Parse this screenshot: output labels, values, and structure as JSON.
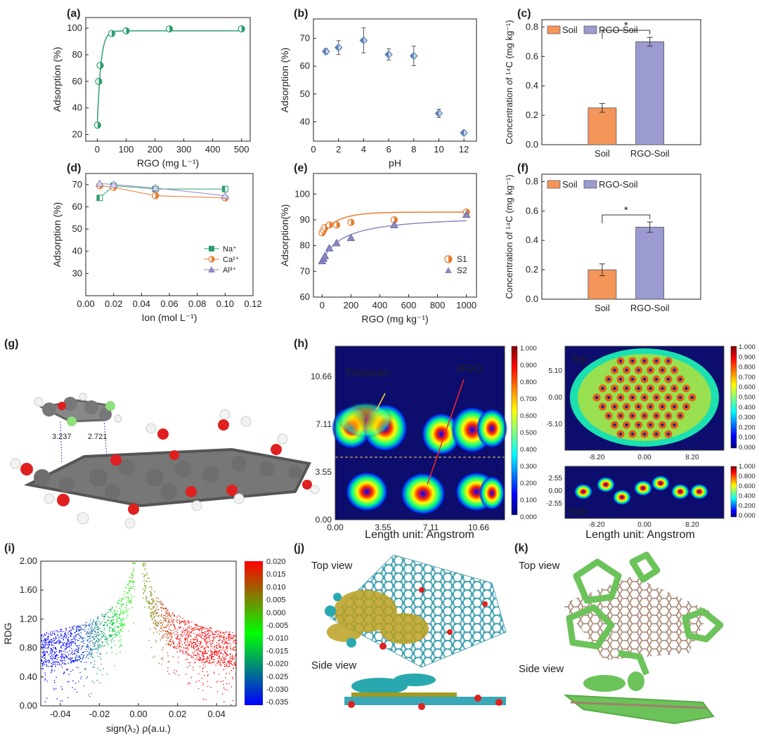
{
  "chart_data": [
    {
      "id": "a",
      "type": "scatter",
      "panel_label": "(a)",
      "xlabel": "RGO (mg L⁻¹)",
      "ylabel": "Adsorption (%)",
      "xlim": [
        -40,
        530
      ],
      "ylim": [
        15,
        108
      ],
      "xticks": [
        0,
        100,
        200,
        300,
        400,
        500
      ],
      "yticks": [
        20,
        40,
        60,
        80,
        100
      ],
      "x": [
        1,
        5,
        10,
        50,
        100,
        250,
        500
      ],
      "y": [
        27,
        60,
        72,
        96,
        98,
        99.5,
        99.5
      ],
      "fit": true,
      "color": "#2f9e6e"
    },
    {
      "id": "b",
      "type": "scatter",
      "panel_label": "(b)",
      "xlabel": "pH",
      "ylabel": "Adsorption (%)",
      "xlim": [
        0,
        13
      ],
      "ylim": [
        33,
        77
      ],
      "xticks": [
        0,
        2,
        4,
        6,
        8,
        10,
        12
      ],
      "yticks": [
        40,
        50,
        60,
        70
      ],
      "x": [
        1,
        2,
        4,
        6,
        8,
        10,
        12
      ],
      "y": [
        65.3,
        66.7,
        69.3,
        64.2,
        63.7,
        43,
        36
      ],
      "err": [
        1,
        2.5,
        4.5,
        2,
        3.5,
        1.5,
        0.8
      ],
      "color": "#5b7fb5"
    },
    {
      "id": "c",
      "type": "bar",
      "panel_label": "(c)",
      "categories": [
        "Soil",
        "RGO-Soil"
      ],
      "values": [
        0.25,
        0.7
      ],
      "err": [
        0.03,
        0.03
      ],
      "ylabel": "Concentration of ¹⁴C (mg kg⁻¹)",
      "ylim": [
        0,
        0.85
      ],
      "yticks": [
        0.0,
        0.2,
        0.4,
        0.6,
        0.8
      ],
      "legend": [
        "Soil",
        "RGO-Soil"
      ],
      "colors": [
        "#f4955a",
        "#9b9bd1"
      ],
      "significance": "*"
    },
    {
      "id": "d",
      "type": "line",
      "panel_label": "(d)",
      "xlabel": "Ion (mol L⁻¹)",
      "ylabel": "Adsorption (%)",
      "xlim": [
        0,
        0.12
      ],
      "ylim": [
        20,
        75
      ],
      "xticks": [
        "0.00",
        "0.02",
        "0.04",
        "0.06",
        "0.08",
        "0.10",
        "0.12"
      ],
      "yticks": [
        30,
        40,
        50,
        60,
        70
      ],
      "x": [
        0.01,
        0.02,
        0.05,
        0.1
      ],
      "series": [
        {
          "name": "Na⁺",
          "values": [
            64,
            69.5,
            68,
            68
          ],
          "color": "#2f9e6e"
        },
        {
          "name": "Ca²⁺",
          "values": [
            69.5,
            68.8,
            65,
            64
          ],
          "color": "#e87b2f"
        },
        {
          "name": "Al³⁺",
          "values": [
            70.5,
            70,
            68.5,
            65
          ],
          "color": "#8a8ac2"
        }
      ]
    },
    {
      "id": "e",
      "type": "scatter",
      "panel_label": "(e)",
      "xlabel": "RGO (mg kg⁻¹)",
      "ylabel": "Adsorption(%)",
      "xlim": [
        -60,
        1070
      ],
      "ylim": [
        60,
        108
      ],
      "xticks": [
        0,
        200,
        400,
        600,
        800,
        1000
      ],
      "yticks": [
        60,
        70,
        80,
        90,
        100
      ],
      "series": [
        {
          "name": "S1",
          "x": [
            0,
            10,
            20,
            50,
            100,
            200,
            500,
            1000
          ],
          "values": [
            85,
            86,
            87,
            88,
            88,
            89,
            90,
            93
          ],
          "color": "#e87b2f"
        },
        {
          "name": "S2",
          "x": [
            0,
            10,
            20,
            50,
            100,
            200,
            500,
            1000
          ],
          "values": [
            74,
            75,
            76,
            79,
            81,
            83,
            88,
            92
          ],
          "color": "#8a8ac2"
        }
      ]
    },
    {
      "id": "f",
      "type": "bar",
      "panel_label": "(f)",
      "categories": [
        "Soil",
        "RGO-Soil"
      ],
      "values": [
        0.2,
        0.49
      ],
      "err": [
        0.04,
        0.035
      ],
      "ylabel": "Concentration of ¹⁴C (mg kg⁻¹)",
      "ylim": [
        0,
        0.85
      ],
      "yticks": [
        0.0,
        0.2,
        0.4,
        0.6,
        0.8
      ],
      "legend": [
        "Soil",
        "RGO-Soil"
      ],
      "colors": [
        "#f4955a",
        "#9b9bd1"
      ],
      "significance": "*"
    },
    {
      "id": "h",
      "type": "heatmap",
      "panel_label": "(h)",
      "left": {
        "xticks": [
          "0.00",
          "3.55",
          "7.11",
          "10.66"
        ],
        "yticks": [
          "0.00",
          "3.55",
          "7.11",
          "10.66"
        ],
        "labels": [
          "Triclosan",
          "RGO"
        ]
      },
      "top": {
        "label": "Top",
        "xticks": [
          "-8.20",
          "0.00",
          "8.20"
        ],
        "yticks": [
          "-5.10",
          "0.00",
          "5.10"
        ]
      },
      "side": {
        "label": "Side",
        "xticks": [
          "-8.20",
          "0.00",
          "8.20"
        ],
        "yticks": [
          "-2.55",
          "0.00",
          "2.55"
        ]
      },
      "xlabel": "Length unit: Angstrom",
      "colorbar": [
        "1.000",
        "0.900",
        "0.800",
        "0.700",
        "0.600",
        "0.500",
        "0.400",
        "0.300",
        "0.200",
        "0.100",
        "0.000"
      ],
      "colorbar_small": [
        "1.000",
        "0.800",
        "0.600",
        "0.400",
        "0.200",
        "0.000"
      ]
    },
    {
      "id": "i",
      "type": "scatter",
      "panel_label": "(i)",
      "xlabel": "sign(λ₂) ρ(a.u.)",
      "ylabel": "RDG",
      "xlim": [
        -0.05,
        0.05
      ],
      "ylim": [
        0,
        2
      ],
      "xticks": [
        "-0.04",
        "-0.02",
        "0.00",
        "0.02",
        "0.04"
      ],
      "yticks": [
        "0.00",
        "0.40",
        "0.80",
        "1.20",
        "1.60",
        "2.00"
      ],
      "colorbar": [
        "0.020",
        "0.015",
        "0.010",
        "0.005",
        "0.000",
        "-0.005",
        "-0.010",
        "-0.015",
        "-0.020",
        "-0.025",
        "-0.030",
        "-0.035"
      ]
    }
  ],
  "panel_g": {
    "label": "(g)",
    "distances": [
      "3.237",
      "2.721"
    ]
  },
  "panel_j": {
    "label": "(j)",
    "views": [
      "Top view",
      "Side view"
    ]
  },
  "panel_k": {
    "label": "(k)",
    "views": [
      "Top view",
      "Side view"
    ]
  }
}
